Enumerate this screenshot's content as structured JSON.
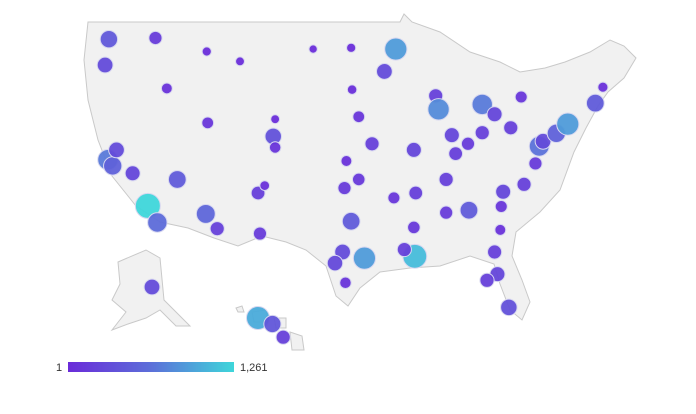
{
  "legend": {
    "min": {
      "value": 1,
      "label": "1"
    },
    "max": {
      "value": 1261,
      "label": "1,261"
    },
    "colors": [
      "#6a2bd9",
      "#5c6fd9",
      "#3ed6da"
    ]
  },
  "points": [
    {
      "lon": -122.3,
      "lat": 47.6,
      "value": 420
    },
    {
      "lon": -122.7,
      "lat": 45.5,
      "value": 300
    },
    {
      "lon": -117.4,
      "lat": 47.7,
      "value": 150
    },
    {
      "lon": -116.2,
      "lat": 43.6,
      "value": 60
    },
    {
      "lon": -112.0,
      "lat": 46.6,
      "value": 20
    },
    {
      "lon": -108.5,
      "lat": 45.8,
      "value": 15
    },
    {
      "lon": -111.9,
      "lat": 40.8,
      "value": 90
    },
    {
      "lon": -105.0,
      "lat": 39.7,
      "value": 350
    },
    {
      "lon": -104.8,
      "lat": 38.8,
      "value": 80
    },
    {
      "lon": -122.4,
      "lat": 37.8,
      "value": 700
    },
    {
      "lon": -121.9,
      "lat": 37.3,
      "value": 500
    },
    {
      "lon": -121.5,
      "lat": 38.6,
      "value": 300
    },
    {
      "lon": -119.8,
      "lat": 36.7,
      "value": 250
    },
    {
      "lon": -118.2,
      "lat": 34.05,
      "value": 1261
    },
    {
      "lon": -117.2,
      "lat": 32.7,
      "value": 600
    },
    {
      "lon": -115.1,
      "lat": 36.2,
      "value": 450
    },
    {
      "lon": -112.1,
      "lat": 33.4,
      "value": 550
    },
    {
      "lon": -110.9,
      "lat": 32.2,
      "value": 200
    },
    {
      "lon": -106.6,
      "lat": 35.1,
      "value": 180
    },
    {
      "lon": -106.4,
      "lat": 31.8,
      "value": 150
    },
    {
      "lon": -105.9,
      "lat": 35.7,
      "value": 30
    },
    {
      "lon": -104.8,
      "lat": 41.1,
      "value": 15
    },
    {
      "lon": -96.8,
      "lat": 46.9,
      "value": 20
    },
    {
      "lon": -100.8,
      "lat": 46.8,
      "value": 8
    },
    {
      "lon": -96.7,
      "lat": 43.5,
      "value": 25
    },
    {
      "lon": -96.0,
      "lat": 41.3,
      "value": 90
    },
    {
      "lon": -94.6,
      "lat": 39.1,
      "value": 200
    },
    {
      "lon": -97.3,
      "lat": 37.7,
      "value": 60
    },
    {
      "lon": -97.5,
      "lat": 35.5,
      "value": 150
    },
    {
      "lon": -96.0,
      "lat": 36.2,
      "value": 120
    },
    {
      "lon": -96.8,
      "lat": 32.8,
      "value": 450
    },
    {
      "lon": -97.7,
      "lat": 30.3,
      "value": 300
    },
    {
      "lon": -98.5,
      "lat": 29.4,
      "value": 280
    },
    {
      "lon": -95.4,
      "lat": 29.8,
      "value": 900
    },
    {
      "lon": -97.4,
      "lat": 27.8,
      "value": 80
    },
    {
      "lon": -90.1,
      "lat": 29.95,
      "value": 1100
    },
    {
      "lon": -91.2,
      "lat": 30.5,
      "value": 200
    },
    {
      "lon": -90.2,
      "lat": 32.3,
      "value": 120
    },
    {
      "lon": -90.0,
      "lat": 35.1,
      "value": 180
    },
    {
      "lon": -92.3,
      "lat": 34.7,
      "value": 100
    },
    {
      "lon": -90.2,
      "lat": 38.6,
      "value": 250
    },
    {
      "lon": -93.3,
      "lat": 44.98,
      "value": 300
    },
    {
      "lon": -92.1,
      "lat": 46.8,
      "value": 900
    },
    {
      "lon": -87.9,
      "lat": 43.0,
      "value": 200
    },
    {
      "lon": -87.6,
      "lat": 41.9,
      "value": 800
    },
    {
      "lon": -83.0,
      "lat": 42.3,
      "value": 700
    },
    {
      "lon": -86.2,
      "lat": 39.8,
      "value": 250
    },
    {
      "lon": -83.0,
      "lat": 40.0,
      "value": 200
    },
    {
      "lon": -81.7,
      "lat": 41.5,
      "value": 250
    },
    {
      "lon": -84.5,
      "lat": 39.1,
      "value": 150
    },
    {
      "lon": -85.8,
      "lat": 38.3,
      "value": 180
    },
    {
      "lon": -86.8,
      "lat": 36.2,
      "value": 200
    },
    {
      "lon": -84.4,
      "lat": 33.7,
      "value": 450
    },
    {
      "lon": -86.8,
      "lat": 33.5,
      "value": 150
    },
    {
      "lon": -80.8,
      "lat": 35.2,
      "value": 250
    },
    {
      "lon": -78.6,
      "lat": 35.8,
      "value": 200
    },
    {
      "lon": -77.4,
      "lat": 37.5,
      "value": 150
    },
    {
      "lon": -77.0,
      "lat": 38.9,
      "value": 650
    },
    {
      "lon": -76.6,
      "lat": 39.3,
      "value": 300
    },
    {
      "lon": -75.2,
      "lat": 39.95,
      "value": 500
    },
    {
      "lon": -74.0,
      "lat": 40.7,
      "value": 900
    },
    {
      "lon": -71.1,
      "lat": 42.4,
      "value": 450
    },
    {
      "lon": -80.0,
      "lat": 40.4,
      "value": 200
    },
    {
      "lon": -78.9,
      "lat": 42.9,
      "value": 100
    },
    {
      "lon": -70.3,
      "lat": 43.7,
      "value": 40
    },
    {
      "lon": -81.7,
      "lat": 30.3,
      "value": 200
    },
    {
      "lon": -81.4,
      "lat": 28.5,
      "value": 250
    },
    {
      "lon": -82.5,
      "lat": 28.0,
      "value": 200
    },
    {
      "lon": -80.2,
      "lat": 25.8,
      "value": 350
    },
    {
      "lon": -81.1,
      "lat": 32.1,
      "value": 60
    },
    {
      "lon": -81.0,
      "lat": 34.0,
      "value": 100
    },
    {
      "lon": -149.9,
      "lat": 61.2,
      "value": 300
    },
    {
      "lon": -157.9,
      "lat": 21.3,
      "value": 1000
    },
    {
      "lon": -156.3,
      "lat": 20.8,
      "value": 400
    },
    {
      "lon": -155.1,
      "lat": 19.7,
      "value": 200
    }
  ]
}
